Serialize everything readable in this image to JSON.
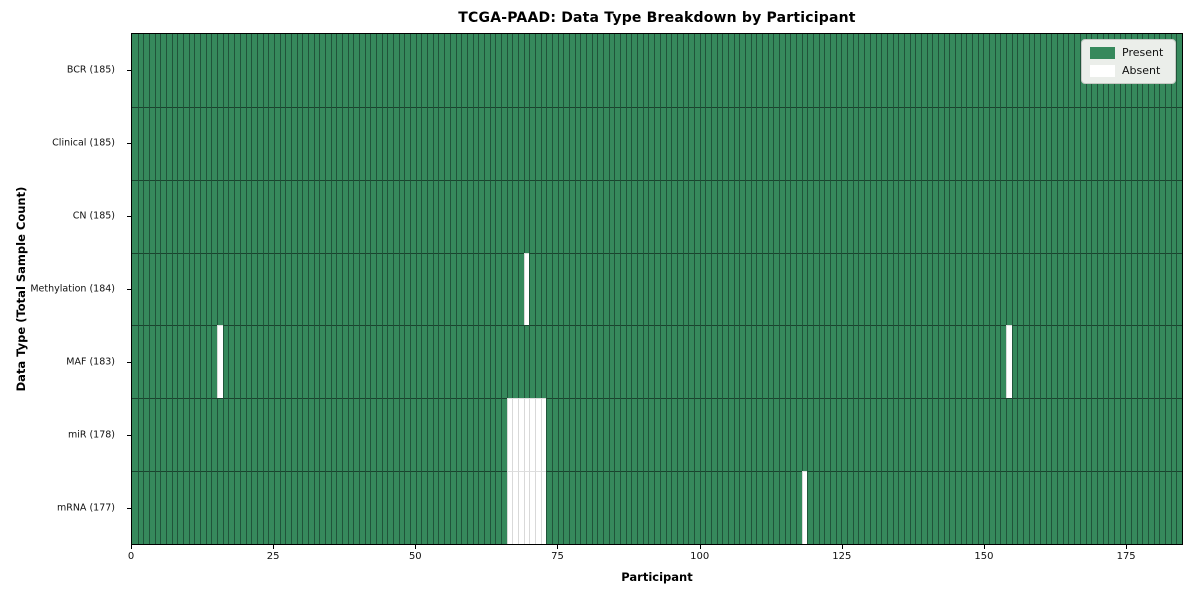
{
  "chart_data": {
    "type": "heatmap",
    "title": "TCGA-PAAD: Data Type Breakdown by Participant",
    "xlabel": "Participant",
    "ylabel": "Data Type (Total Sample Count)",
    "xlim": [
      0,
      185
    ],
    "n_participants": 185,
    "x_ticks": [
      0,
      25,
      50,
      75,
      100,
      125,
      150,
      175
    ],
    "grid": "cell-borders",
    "legend_position": "upper right",
    "legend": [
      {
        "label": "Present",
        "value": "present"
      },
      {
        "label": "Absent",
        "value": "absent"
      }
    ],
    "colors": {
      "present": "#36895c",
      "absent": "#ffffff"
    },
    "rows": [
      {
        "label": "BCR (185)",
        "data_type": "BCR",
        "present_count": 185,
        "absent_participants": []
      },
      {
        "label": "Clinical (185)",
        "data_type": "Clinical",
        "present_count": 185,
        "absent_participants": []
      },
      {
        "label": "CN (185)",
        "data_type": "CN",
        "present_count": 185,
        "absent_participants": []
      },
      {
        "label": "Methylation (184)",
        "data_type": "Methylation",
        "present_count": 184,
        "absent_participants": [
          69
        ]
      },
      {
        "label": "MAF (183)",
        "data_type": "MAF",
        "present_count": 183,
        "absent_participants": [
          15,
          154
        ]
      },
      {
        "label": "miR (178)",
        "data_type": "miR",
        "present_count": 178,
        "absent_participants": [
          66,
          67,
          68,
          69,
          70,
          71,
          72
        ]
      },
      {
        "label": "mRNA (177)",
        "data_type": "mRNA",
        "present_count": 177,
        "absent_participants": [
          66,
          67,
          68,
          69,
          70,
          71,
          72,
          118
        ]
      }
    ]
  }
}
